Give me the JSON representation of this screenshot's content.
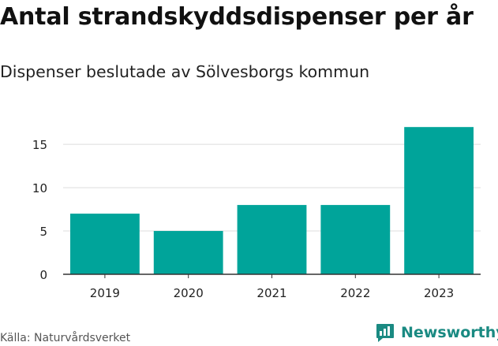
{
  "title": "Antal strandskyddsdispenser per år",
  "subtitle": "Dispenser beslutade av Sölvesborgs kommun",
  "source": "Källa: Naturvårdsverket",
  "brand": {
    "name": "Newsworthy",
    "icon": "newsworthy-logo-icon",
    "color": "#1a8a82"
  },
  "colors": {
    "bar": "#00a49a",
    "grid": "#dddddd",
    "axis": "#333333"
  },
  "chart_data": {
    "type": "bar",
    "title": "Antal strandskyddsdispenser per år",
    "subtitle": "Dispenser beslutade av Sölvesborgs kommun",
    "categories": [
      "2019",
      "2020",
      "2021",
      "2022",
      "2023"
    ],
    "values": [
      7,
      5,
      8,
      8,
      17
    ],
    "xlabel": "",
    "ylabel": "",
    "ylim": [
      0,
      18.2
    ],
    "yticks": [
      0,
      5,
      10,
      15
    ],
    "grid": true
  }
}
